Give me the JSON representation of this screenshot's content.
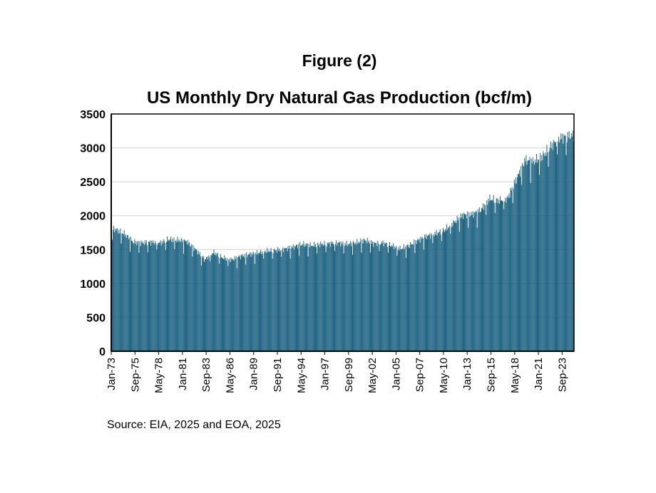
{
  "figure_label": "Figure (2)",
  "source": "Source: EIA, 2025 and EOA, 2025",
  "chart_data": {
    "type": "bar",
    "title": "US Monthly Dry Natural Gas Production (bcf/m)",
    "xlabel": "",
    "ylabel": "",
    "ylim": [
      0,
      3500
    ],
    "yticks": [
      0,
      500,
      1000,
      1500,
      2000,
      2500,
      3000,
      3500
    ],
    "grid": true,
    "legend": "none",
    "bar_color": "#1a6080",
    "x_start": "Jan-73",
    "x_end": "Dec-24",
    "xtick_labels": [
      "Jan-73",
      "Sep-75",
      "May-78",
      "Jan-81",
      "Sep-83",
      "May-86",
      "Jan-89",
      "Sep-91",
      "May-94",
      "Jan-97",
      "Sep-99",
      "May-02",
      "Jan-05",
      "Sep-07",
      "May-10",
      "Jan-13",
      "Sep-15",
      "May-18",
      "Jan-21",
      "Sep-23"
    ],
    "annual_values": {
      "categories": [
        "1973",
        "1974",
        "1975",
        "1976",
        "1977",
        "1978",
        "1979",
        "1980",
        "1981",
        "1982",
        "1983",
        "1984",
        "1985",
        "1986",
        "1987",
        "1988",
        "1989",
        "1990",
        "1991",
        "1992",
        "1993",
        "1994",
        "1995",
        "1996",
        "1997",
        "1998",
        "1999",
        "2000",
        "2001",
        "2002",
        "2003",
        "2004",
        "2005",
        "2006",
        "2007",
        "2008",
        "2009",
        "2010",
        "2011",
        "2012",
        "2013",
        "2014",
        "2015",
        "2016",
        "2017",
        "2018",
        "2019",
        "2020",
        "2021",
        "2022",
        "2023",
        "2024"
      ],
      "values": [
        1800,
        1730,
        1610,
        1600,
        1610,
        1600,
        1650,
        1640,
        1620,
        1500,
        1350,
        1460,
        1380,
        1350,
        1400,
        1430,
        1450,
        1480,
        1490,
        1510,
        1540,
        1580,
        1560,
        1580,
        1590,
        1600,
        1580,
        1600,
        1640,
        1590,
        1600,
        1560,
        1510,
        1560,
        1640,
        1700,
        1740,
        1790,
        1900,
        2010,
        2020,
        2080,
        2250,
        2220,
        2250,
        2530,
        2820,
        2800,
        2880,
        3040,
        3150,
        3180
      ]
    }
  }
}
